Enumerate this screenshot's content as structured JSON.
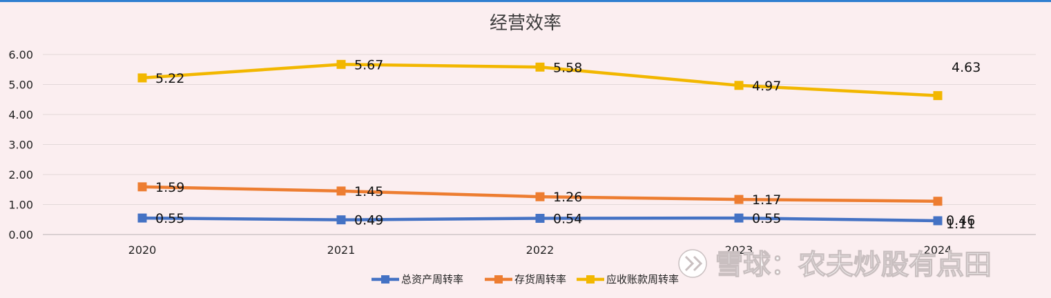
{
  "chart_data": {
    "type": "line",
    "title": "经营效率",
    "categories": [
      "2020",
      "2021",
      "2022",
      "2023",
      "2024"
    ],
    "ylim": [
      0,
      6
    ],
    "yticks": [
      "0.00",
      "1.00",
      "2.00",
      "3.00",
      "4.00",
      "5.00",
      "6.00"
    ],
    "grid": true,
    "legend_position": "bottom",
    "series": [
      {
        "name": "总资产周转率",
        "color": "#4472c4",
        "values": [
          0.55,
          0.49,
          0.54,
          0.55,
          0.46
        ],
        "labels": [
          "0.55",
          "0.49",
          "0.54",
          "0.55",
          "0.46"
        ]
      },
      {
        "name": "存货周转率",
        "color": "#ed7d31",
        "values": [
          1.59,
          1.45,
          1.26,
          1.17,
          1.11
        ],
        "labels": [
          "1.59",
          "1.45",
          "1.26",
          "1.17",
          "1.11"
        ]
      },
      {
        "name": "应收账款周转率",
        "color": "#f2b700",
        "values": [
          5.22,
          5.67,
          5.58,
          4.97,
          4.63
        ],
        "labels": [
          "5.22",
          "5.67",
          "5.58",
          "4.97",
          "4.63"
        ]
      }
    ]
  },
  "watermark": {
    "icon": "xueqiu-logo-icon",
    "text": "雪球：农夫炒股有点田"
  }
}
